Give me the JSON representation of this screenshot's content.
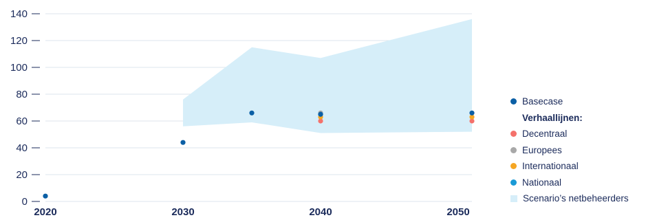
{
  "chart_data": {
    "type": "scatter",
    "ylim": [
      0,
      140
    ],
    "yticks": [
      0,
      20,
      40,
      60,
      80,
      100,
      120,
      140
    ],
    "xlim": [
      2020,
      2051
    ],
    "xticks": [
      2020,
      2030,
      2040,
      2050
    ],
    "grid": true,
    "legend_position": "right",
    "band": {
      "name": "Scenario’s netbeheerders",
      "color": "#d6eef9",
      "upper": [
        {
          "x": 2030,
          "y": 76
        },
        {
          "x": 2035,
          "y": 115
        },
        {
          "x": 2040,
          "y": 107
        },
        {
          "x": 2051,
          "y": 136
        }
      ],
      "lower": [
        {
          "x": 2030,
          "y": 56
        },
        {
          "x": 2035,
          "y": 59
        },
        {
          "x": 2040,
          "y": 51
        },
        {
          "x": 2051,
          "y": 52
        }
      ]
    },
    "series": [
      {
        "name": "Decentraal",
        "color": "#f4716b",
        "points": [
          {
            "x": 2040,
            "y": 60
          },
          {
            "x": 2051,
            "y": 60
          }
        ]
      },
      {
        "name": "Europees",
        "color": "#a8a8a8",
        "points": [
          {
            "x": 2040,
            "y": 66
          }
        ]
      },
      {
        "name": "Internationaal",
        "color": "#f5a623",
        "points": [
          {
            "x": 2040,
            "y": 63
          },
          {
            "x": 2051,
            "y": 63
          }
        ]
      },
      {
        "name": "Nationaal",
        "color": "#1a9ad6",
        "points": [
          {
            "x": 2040,
            "y": 65
          }
        ]
      },
      {
        "name": "Basecase",
        "color": "#0b5fa5",
        "points": [
          {
            "x": 2020,
            "y": 4
          },
          {
            "x": 2030,
            "y": 44
          },
          {
            "x": 2035,
            "y": 66
          },
          {
            "x": 2040,
            "y": 65
          },
          {
            "x": 2051,
            "y": 66
          }
        ]
      }
    ]
  },
  "legend": {
    "heading": "Verhaallijnen:",
    "items_top": [
      {
        "label": "Basecase",
        "color": "#0b5fa5",
        "shape": "dot"
      }
    ],
    "items": [
      {
        "label": "Decentraal",
        "color": "#f4716b",
        "shape": "dot"
      },
      {
        "label": "Europees",
        "color": "#a8a8a8",
        "shape": "dot"
      },
      {
        "label": "Internationaal",
        "color": "#f5a623",
        "shape": "dot"
      },
      {
        "label": "Nationaal",
        "color": "#1a9ad6",
        "shape": "dot"
      },
      {
        "label": "Scenario’s netbeheerders",
        "color": "#d6eef9",
        "shape": "square"
      }
    ]
  }
}
